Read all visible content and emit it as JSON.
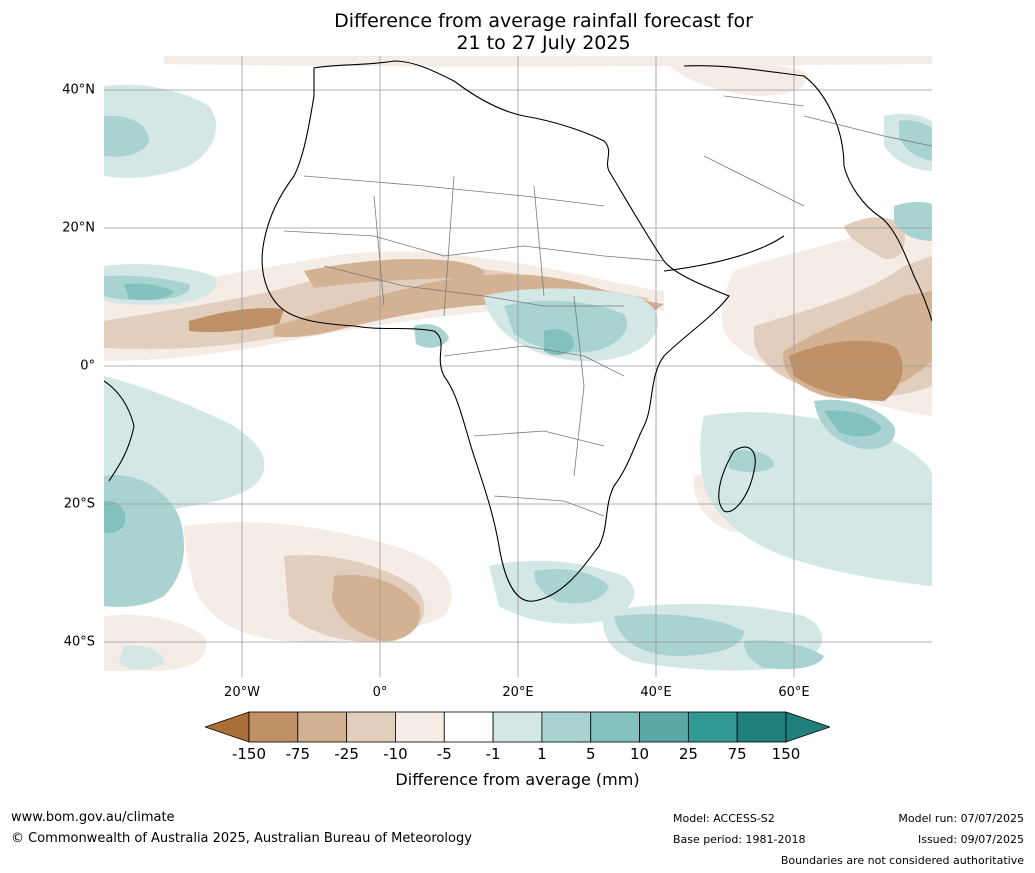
{
  "title_line1": "Difference from average rainfall forecast for",
  "title_line2": "21 to 27 July 2025",
  "lat_labels": [
    "40°N",
    "20°N",
    "0°",
    "20°S",
    "40°S"
  ],
  "lon_labels": [
    "20°W",
    "0°",
    "20°E",
    "40°E",
    "60°E"
  ],
  "colorbar": {
    "title": "Difference from average (mm)",
    "ticks": [
      "-150",
      "-75",
      "-25",
      "-10",
      "-5",
      "-1",
      "1",
      "5",
      "10",
      "25",
      "75",
      "150"
    ],
    "colors": [
      "#a86f37",
      "#c09066",
      "#d3b294",
      "#e2cebd",
      "#f5ece6",
      "#ffffff",
      "#d3e8e6",
      "#a9d3d1",
      "#82c1be",
      "#5aa9a6",
      "#319893",
      "#1f7f7b"
    ]
  },
  "footer": {
    "left1": "www.bom.gov.au/climate",
    "left2": "© Commonwealth of Australia 2025, Australian Bureau of Meteorology",
    "model": "Model: ACCESS-S2",
    "base": "Base period: 1981-2018",
    "run": "Model run: 07/07/2025",
    "issued": "Issued: 09/07/2025",
    "disclaimer": "Boundaries are not considered authoritative"
  }
}
